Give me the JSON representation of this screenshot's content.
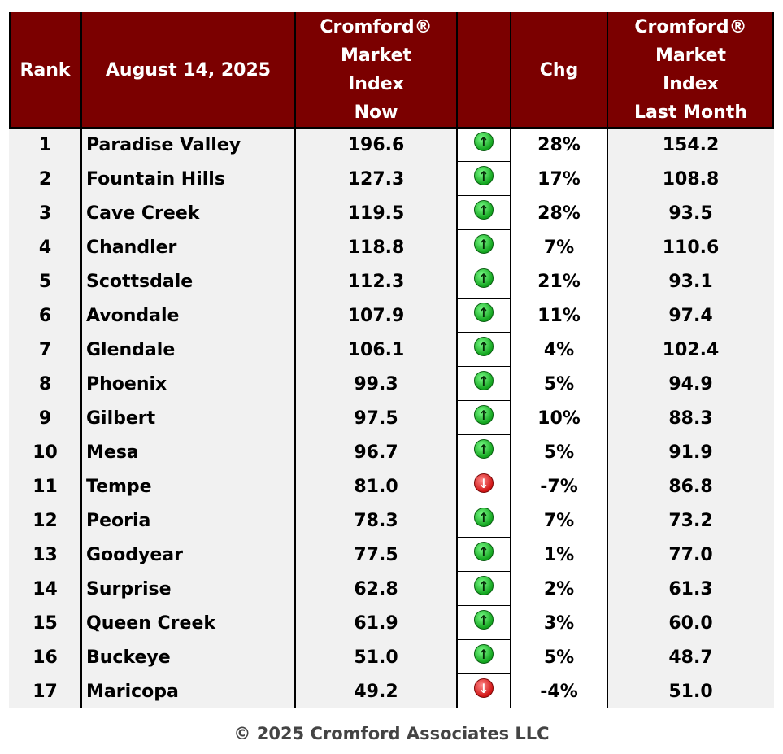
{
  "header": {
    "rank": "Rank",
    "date": "August 14, 2025",
    "now": "Cromford®\nMarket\nIndex\nNow",
    "arrow": "",
    "chg": "Chg",
    "last": "Cromford®\nMarket\nIndex\nLast Month"
  },
  "colors": {
    "header_bg": "#7b0000",
    "up": "#12a41e",
    "down": "#d01414"
  },
  "chart_data": {
    "type": "table",
    "columns": [
      "Rank",
      "August 14, 2025",
      "Cromford® Market Index Now",
      "",
      "Chg",
      "Cromford® Market Index Last Month"
    ],
    "rows": [
      {
        "rank": "1",
        "city": "Paradise Valley",
        "now": "196.6",
        "dir": "up",
        "chg": "28%",
        "last": "154.2"
      },
      {
        "rank": "2",
        "city": "Fountain Hills",
        "now": "127.3",
        "dir": "up",
        "chg": "17%",
        "last": "108.8"
      },
      {
        "rank": "3",
        "city": "Cave Creek",
        "now": "119.5",
        "dir": "up",
        "chg": "28%",
        "last": "93.5"
      },
      {
        "rank": "4",
        "city": "Chandler",
        "now": "118.8",
        "dir": "up",
        "chg": "7%",
        "last": "110.6"
      },
      {
        "rank": "5",
        "city": "Scottsdale",
        "now": "112.3",
        "dir": "up",
        "chg": "21%",
        "last": "93.1"
      },
      {
        "rank": "6",
        "city": "Avondale",
        "now": "107.9",
        "dir": "up",
        "chg": "11%",
        "last": "97.4"
      },
      {
        "rank": "7",
        "city": "Glendale",
        "now": "106.1",
        "dir": "up",
        "chg": "4%",
        "last": "102.4"
      },
      {
        "rank": "8",
        "city": "Phoenix",
        "now": "99.3",
        "dir": "up",
        "chg": "5%",
        "last": "94.9"
      },
      {
        "rank": "9",
        "city": "Gilbert",
        "now": "97.5",
        "dir": "up",
        "chg": "10%",
        "last": "88.3"
      },
      {
        "rank": "10",
        "city": "Mesa",
        "now": "96.7",
        "dir": "up",
        "chg": "5%",
        "last": "91.9"
      },
      {
        "rank": "11",
        "city": "Tempe",
        "now": "81.0",
        "dir": "down",
        "chg": "-7%",
        "last": "86.8"
      },
      {
        "rank": "12",
        "city": "Peoria",
        "now": "78.3",
        "dir": "up",
        "chg": "7%",
        "last": "73.2"
      },
      {
        "rank": "13",
        "city": "Goodyear",
        "now": "77.5",
        "dir": "up",
        "chg": "1%",
        "last": "77.0"
      },
      {
        "rank": "14",
        "city": "Surprise",
        "now": "62.8",
        "dir": "up",
        "chg": "2%",
        "last": "61.3"
      },
      {
        "rank": "15",
        "city": "Queen Creek",
        "now": "61.9",
        "dir": "up",
        "chg": "3%",
        "last": "60.0"
      },
      {
        "rank": "16",
        "city": "Buckeye",
        "now": "51.0",
        "dir": "up",
        "chg": "5%",
        "last": "48.7"
      },
      {
        "rank": "17",
        "city": "Maricopa",
        "now": "49.2",
        "dir": "down",
        "chg": "-4%",
        "last": "51.0"
      }
    ]
  },
  "footer": "© 2025 Cromford Associates LLC"
}
